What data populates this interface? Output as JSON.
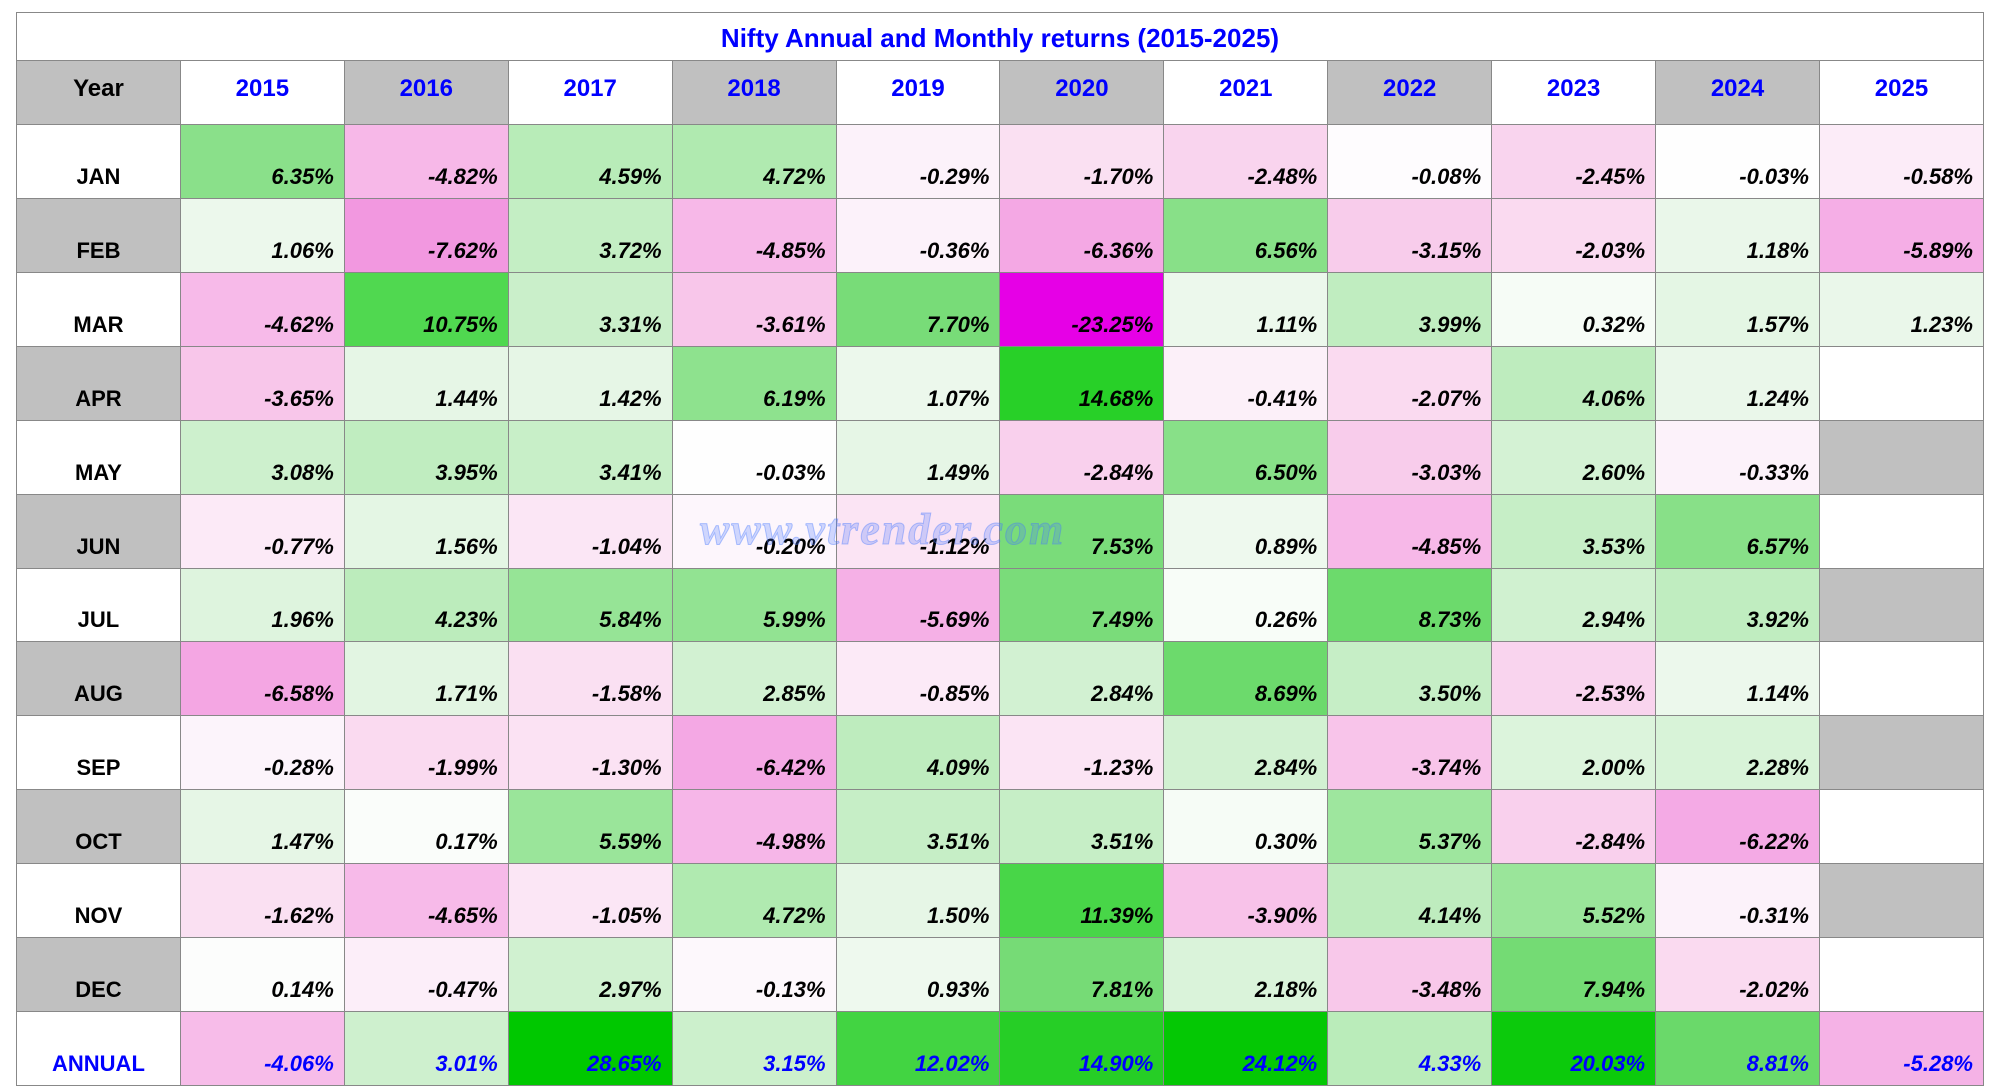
{
  "title": "Nifty Annual and Monthly returns (2015-2025)",
  "watermark": "www.vtrender.com",
  "styling": {
    "title_color": "#0000ff",
    "title_fontsize": 26,
    "year_header_color": "#0000ff",
    "annual_row_color": "#0000ff",
    "alt_header_bg": "#c0c0c0",
    "border_color": "#888888",
    "cell_font_style": "italic",
    "cell_font_weight": "bold",
    "cell_fontsize": 22,
    "cell_align": "right",
    "color_scale_min": "#ff00ff",
    "color_scale_mid": "#ffffff",
    "color_scale_max": "#00d000",
    "empty_gray": "#c0c0c0"
  },
  "years": [
    "2015",
    "2016",
    "2017",
    "2018",
    "2019",
    "2020",
    "2021",
    "2022",
    "2023",
    "2024",
    "2025"
  ],
  "months": [
    "JAN",
    "FEB",
    "MAR",
    "APR",
    "MAY",
    "JUN",
    "JUL",
    "AUG",
    "SEP",
    "OCT",
    "NOV",
    "DEC"
  ],
  "annual_label": "ANNUAL",
  "year_corner_label": "Year",
  "data": {
    "JAN": {
      "2015": {
        "v": "6.35%",
        "bg": "#8ae08a"
      },
      "2016": {
        "v": "-4.82%",
        "bg": "#f7b8e8"
      },
      "2017": {
        "v": "4.59%",
        "bg": "#b8ecb8"
      },
      "2018": {
        "v": "4.72%",
        "bg": "#b0eab0"
      },
      "2019": {
        "v": "-0.29%",
        "bg": "#fcf2fa"
      },
      "2020": {
        "v": "-1.70%",
        "bg": "#fae0f2"
      },
      "2021": {
        "v": "-2.48%",
        "bg": "#f9d4ee"
      },
      "2022": {
        "v": "-0.08%",
        "bg": "#fefcfe"
      },
      "2023": {
        "v": "-2.45%",
        "bg": "#f9d4ee"
      },
      "2024": {
        "v": "-0.03%",
        "bg": "#fefefe"
      },
      "2025": {
        "v": "-0.58%",
        "bg": "#fcecf8"
      }
    },
    "FEB": {
      "2015": {
        "v": "1.06%",
        "bg": "#ecf8ec"
      },
      "2016": {
        "v": "-7.62%",
        "bg": "#f298e0"
      },
      "2017": {
        "v": "3.72%",
        "bg": "#c4eec4"
      },
      "2018": {
        "v": "-4.85%",
        "bg": "#f7b8e8"
      },
      "2019": {
        "v": "-0.36%",
        "bg": "#fcf2fa"
      },
      "2020": {
        "v": "-6.36%",
        "bg": "#f4a8e4"
      },
      "2021": {
        "v": "6.56%",
        "bg": "#88e088"
      },
      "2022": {
        "v": "-3.15%",
        "bg": "#f8cceb"
      },
      "2023": {
        "v": "-2.03%",
        "bg": "#fadaf0"
      },
      "2024": {
        "v": "1.18%",
        "bg": "#eaf7ea"
      },
      "2025": {
        "v": "-5.89%",
        "bg": "#f5aee6"
      }
    },
    "MAR": {
      "2015": {
        "v": "-4.62%",
        "bg": "#f7bae9"
      },
      "2016": {
        "v": "10.75%",
        "bg": "#50d850"
      },
      "2017": {
        "v": "3.31%",
        "bg": "#caefca"
      },
      "2018": {
        "v": "-3.61%",
        "bg": "#f8c6ea"
      },
      "2019": {
        "v": "7.70%",
        "bg": "#78dc78"
      },
      "2020": {
        "v": "-23.25%",
        "bg": "#e600e6"
      },
      "2021": {
        "v": "1.11%",
        "bg": "#ecf8ec"
      },
      "2022": {
        "v": "3.99%",
        "bg": "#c0edc0"
      },
      "2023": {
        "v": "0.32%",
        "bg": "#f6fcf6"
      },
      "2024": {
        "v": "1.57%",
        "bg": "#e4f6e4"
      },
      "2025": {
        "v": "1.23%",
        "bg": "#eaf7ea"
      }
    },
    "APR": {
      "2015": {
        "v": "-3.65%",
        "bg": "#f8c6ea"
      },
      "2016": {
        "v": "1.44%",
        "bg": "#e6f6e6"
      },
      "2017": {
        "v": "1.42%",
        "bg": "#e6f6e6"
      },
      "2018": {
        "v": "6.19%",
        "bg": "#8ee28e"
      },
      "2019": {
        "v": "1.07%",
        "bg": "#ecf8ec"
      },
      "2020": {
        "v": "14.68%",
        "bg": "#28d028"
      },
      "2021": {
        "v": "-0.41%",
        "bg": "#fcf0f9"
      },
      "2022": {
        "v": "-2.07%",
        "bg": "#fadaf0"
      },
      "2023": {
        "v": "4.06%",
        "bg": "#beecbe"
      },
      "2024": {
        "v": "1.24%",
        "bg": "#eaf7ea"
      },
      "2025": {
        "v": null
      }
    },
    "MAY": {
      "2015": {
        "v": "3.08%",
        "bg": "#cdf0cd"
      },
      "2016": {
        "v": "3.95%",
        "bg": "#c0edc0"
      },
      "2017": {
        "v": "3.41%",
        "bg": "#c8efc8"
      },
      "2018": {
        "v": "-0.03%",
        "bg": "#fefefe"
      },
      "2019": {
        "v": "1.49%",
        "bg": "#e6f6e6"
      },
      "2020": {
        "v": "-2.84%",
        "bg": "#f9d0ed"
      },
      "2021": {
        "v": "6.50%",
        "bg": "#88e088"
      },
      "2022": {
        "v": "-3.03%",
        "bg": "#f8cceb"
      },
      "2023": {
        "v": "2.60%",
        "bg": "#d4f2d4"
      },
      "2024": {
        "v": "-0.33%",
        "bg": "#fcf2fa"
      },
      "2025": {
        "v": null,
        "gray": true
      }
    },
    "JUN": {
      "2015": {
        "v": "-0.77%",
        "bg": "#fceaf7"
      },
      "2016": {
        "v": "1.56%",
        "bg": "#e4f6e4"
      },
      "2017": {
        "v": "-1.04%",
        "bg": "#fbe6f5"
      },
      "2018": {
        "v": "-0.20%",
        "bg": "#fdf6fc"
      },
      "2019": {
        "v": "-1.12%",
        "bg": "#fbe4f4"
      },
      "2020": {
        "v": "7.53%",
        "bg": "#7adc7a"
      },
      "2021": {
        "v": "0.89%",
        "bg": "#eef9ee"
      },
      "2022": {
        "v": "-4.85%",
        "bg": "#f7b8e8"
      },
      "2023": {
        "v": "3.53%",
        "bg": "#c6eec6"
      },
      "2024": {
        "v": "6.57%",
        "bg": "#88e088"
      },
      "2025": {
        "v": null
      }
    },
    "JUL": {
      "2015": {
        "v": "1.96%",
        "bg": "#def4de"
      },
      "2016": {
        "v": "4.23%",
        "bg": "#bcecbc"
      },
      "2017": {
        "v": "5.84%",
        "bg": "#96e496"
      },
      "2018": {
        "v": "5.99%",
        "bg": "#92e392"
      },
      "2019": {
        "v": "-5.69%",
        "bg": "#f5b0e6"
      },
      "2020": {
        "v": "7.49%",
        "bg": "#7adc7a"
      },
      "2021": {
        "v": "0.26%",
        "bg": "#f8fdf8"
      },
      "2022": {
        "v": "8.73%",
        "bg": "#6cda6c"
      },
      "2023": {
        "v": "2.94%",
        "bg": "#d0f1d0"
      },
      "2024": {
        "v": "3.92%",
        "bg": "#c0edc0"
      },
      "2025": {
        "v": null,
        "gray": true
      }
    },
    "AUG": {
      "2015": {
        "v": "-6.58%",
        "bg": "#f4a6e3"
      },
      "2016": {
        "v": "1.71%",
        "bg": "#e2f5e2"
      },
      "2017": {
        "v": "-1.58%",
        "bg": "#fae0f2"
      },
      "2018": {
        "v": "2.85%",
        "bg": "#d2f1d2"
      },
      "2019": {
        "v": "-0.85%",
        "bg": "#fceaf7"
      },
      "2020": {
        "v": "2.84%",
        "bg": "#d2f1d2"
      },
      "2021": {
        "v": "8.69%",
        "bg": "#6cda6c"
      },
      "2022": {
        "v": "3.50%",
        "bg": "#c6eec6"
      },
      "2023": {
        "v": "-2.53%",
        "bg": "#f9d4ee"
      },
      "2024": {
        "v": "1.14%",
        "bg": "#ecf8ec"
      },
      "2025": {
        "v": null
      }
    },
    "SEP": {
      "2015": {
        "v": "-0.28%",
        "bg": "#fcf4fb"
      },
      "2016": {
        "v": "-1.99%",
        "bg": "#fadaf0"
      },
      "2017": {
        "v": "-1.30%",
        "bg": "#fbe2f3"
      },
      "2018": {
        "v": "-6.42%",
        "bg": "#f4a8e4"
      },
      "2019": {
        "v": "4.09%",
        "bg": "#beecbe"
      },
      "2020": {
        "v": "-1.23%",
        "bg": "#fbe4f4"
      },
      "2021": {
        "v": "2.84%",
        "bg": "#d2f1d2"
      },
      "2022": {
        "v": "-3.74%",
        "bg": "#f8c4ea"
      },
      "2023": {
        "v": "2.00%",
        "bg": "#dcf4dc"
      },
      "2024": {
        "v": "2.28%",
        "bg": "#d8f3d8"
      },
      "2025": {
        "v": null,
        "gray": true
      }
    },
    "OCT": {
      "2015": {
        "v": "1.47%",
        "bg": "#e6f6e6"
      },
      "2016": {
        "v": "0.17%",
        "bg": "#fafdfa"
      },
      "2017": {
        "v": "5.59%",
        "bg": "#9ae59a"
      },
      "2018": {
        "v": "-4.98%",
        "bg": "#f6b6e8"
      },
      "2019": {
        "v": "3.51%",
        "bg": "#c6eec6"
      },
      "2020": {
        "v": "3.51%",
        "bg": "#c6eec6"
      },
      "2021": {
        "v": "0.30%",
        "bg": "#f6fcf6"
      },
      "2022": {
        "v": "5.37%",
        "bg": "#9ee69e"
      },
      "2023": {
        "v": "-2.84%",
        "bg": "#f9d0ed"
      },
      "2024": {
        "v": "-6.22%",
        "bg": "#f4aae5"
      },
      "2025": {
        "v": null
      }
    },
    "NOV": {
      "2015": {
        "v": "-1.62%",
        "bg": "#fae0f2"
      },
      "2016": {
        "v": "-4.65%",
        "bg": "#f7bae9"
      },
      "2017": {
        "v": "-1.05%",
        "bg": "#fbe6f5"
      },
      "2018": {
        "v": "4.72%",
        "bg": "#b0eab0"
      },
      "2019": {
        "v": "1.50%",
        "bg": "#e6f6e6"
      },
      "2020": {
        "v": "11.39%",
        "bg": "#48d648"
      },
      "2021": {
        "v": "-3.90%",
        "bg": "#f8c2e9"
      },
      "2022": {
        "v": "4.14%",
        "bg": "#beecbe"
      },
      "2023": {
        "v": "5.52%",
        "bg": "#9ae59a"
      },
      "2024": {
        "v": "-0.31%",
        "bg": "#fcf2fa"
      },
      "2025": {
        "v": null,
        "gray": true
      }
    },
    "DEC": {
      "2015": {
        "v": "0.14%",
        "bg": "#fcfdfc"
      },
      "2016": {
        "v": "-0.47%",
        "bg": "#fceef9"
      },
      "2017": {
        "v": "2.97%",
        "bg": "#d0f1d0"
      },
      "2018": {
        "v": "-0.13%",
        "bg": "#fdf8fc"
      },
      "2019": {
        "v": "0.93%",
        "bg": "#eef9ee"
      },
      "2020": {
        "v": "7.81%",
        "bg": "#76db76"
      },
      "2021": {
        "v": "2.18%",
        "bg": "#daf3da"
      },
      "2022": {
        "v": "-3.48%",
        "bg": "#f8c8ea"
      },
      "2023": {
        "v": "7.94%",
        "bg": "#74db74"
      },
      "2024": {
        "v": "-2.02%",
        "bg": "#fadaf0"
      },
      "2025": {
        "v": null
      }
    }
  },
  "annual": {
    "2015": {
      "v": "-4.06%",
      "bg": "#f7bce9"
    },
    "2016": {
      "v": "3.01%",
      "bg": "#cef0ce"
    },
    "2017": {
      "v": "28.65%",
      "bg": "#00c800"
    },
    "2018": {
      "v": "3.15%",
      "bg": "#ccf0cc"
    },
    "2019": {
      "v": "12.02%",
      "bg": "#42d442"
    },
    "2020": {
      "v": "14.90%",
      "bg": "#26ce26"
    },
    "2021": {
      "v": "24.12%",
      "bg": "#04c804"
    },
    "2022": {
      "v": "4.33%",
      "bg": "#baecba"
    },
    "2023": {
      "v": "20.03%",
      "bg": "#0cca0c"
    },
    "2024": {
      "v": "8.81%",
      "bg": "#6ad96a"
    },
    "2025": {
      "v": "-5.28%",
      "bg": "#f5b2e6"
    }
  }
}
